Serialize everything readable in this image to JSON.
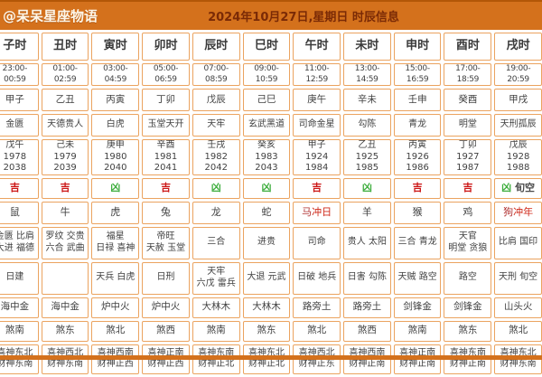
{
  "header": {
    "brand": "@呆呆星座物语",
    "title": "2024年10月27日,星期日 时辰信息"
  },
  "colors": {
    "header_bg": "#d4711c",
    "brand_text": "#fdf6e8",
    "title_text": "#7a2a06",
    "cell_border": "#eba35f",
    "cell_text": "#414141",
    "auspicious_red": "#cc1414",
    "inauspicious_green": "#3fae3f",
    "clash_red": "#d02a1a"
  },
  "table": {
    "columns": [
      {
        "hour": "子时",
        "time": "23:00-00:59",
        "ganzhi": "甲子",
        "deity": "金匮",
        "clash_ganzhi": "戊午",
        "clash_years": "1978 2038",
        "luck": "吉",
        "luck_extra": "",
        "zodiac": "鼠",
        "zodiac_note": "",
        "good_stars": [
          "金匮 比肩",
          "大进 福德"
        ],
        "bad_stars": [
          "日建"
        ],
        "nayin": "海中金",
        "sha": "煞南",
        "xishen": "喜神东北",
        "caishen": "财神东南"
      },
      {
        "hour": "丑时",
        "time": "01:00-02:59",
        "ganzhi": "乙丑",
        "deity": "天德贵人",
        "clash_ganzhi": "己未",
        "clash_years": "1979 2039",
        "luck": "吉",
        "luck_extra": "",
        "zodiac": "牛",
        "zodiac_note": "",
        "good_stars": [
          "罗纹 交贵",
          "六合 武曲"
        ],
        "bad_stars": [],
        "nayin": "海中金",
        "sha": "煞东",
        "xishen": "喜神西北",
        "caishen": "财神东南"
      },
      {
        "hour": "寅时",
        "time": "03:00-04:59",
        "ganzhi": "丙寅",
        "deity": "白虎",
        "clash_ganzhi": "庚申",
        "clash_years": "1980 2040",
        "luck": "凶",
        "luck_extra": "",
        "zodiac": "虎",
        "zodiac_note": "",
        "good_stars": [
          "福星",
          "日禄 喜神"
        ],
        "bad_stars": [
          "天兵 白虎"
        ],
        "nayin": "炉中火",
        "sha": "煞北",
        "xishen": "喜神西南",
        "caishen": "财神正西"
      },
      {
        "hour": "卯时",
        "time": "05:00-06:59",
        "ganzhi": "丁卯",
        "deity": "玉堂天开",
        "clash_ganzhi": "辛酉",
        "clash_years": "1981 2041",
        "luck": "吉",
        "luck_extra": "",
        "zodiac": "兔",
        "zodiac_note": "",
        "good_stars": [
          "帝旺",
          "天赦 玉堂"
        ],
        "bad_stars": [
          "日刑"
        ],
        "nayin": "炉中火",
        "sha": "煞西",
        "xishen": "喜神正南",
        "caishen": "财神正西"
      },
      {
        "hour": "辰时",
        "time": "07:00-08:59",
        "ganzhi": "戊辰",
        "deity": "天牢",
        "clash_ganzhi": "壬戌",
        "clash_years": "1982 2042",
        "luck": "凶",
        "luck_extra": "",
        "zodiac": "龙",
        "zodiac_note": "",
        "good_stars": [
          "三合"
        ],
        "bad_stars": [
          "天牢",
          "六戊 雷兵"
        ],
        "nayin": "大林木",
        "sha": "煞南",
        "xishen": "喜神东南",
        "caishen": "财神正北"
      },
      {
        "hour": "巳时",
        "time": "09:00-10:59",
        "ganzhi": "己巳",
        "deity": "玄武黑道",
        "clash_ganzhi": "癸亥",
        "clash_years": "1983 2043",
        "luck": "凶",
        "luck_extra": "",
        "zodiac": "蛇",
        "zodiac_note": "",
        "good_stars": [
          "进贵"
        ],
        "bad_stars": [
          "大退 元武"
        ],
        "nayin": "大林木",
        "sha": "煞东",
        "xishen": "喜神东北",
        "caishen": "财神正北"
      },
      {
        "hour": "午时",
        "time": "11:00-12:59",
        "ganzhi": "庚午",
        "deity": "司命金星",
        "clash_ganzhi": "甲子",
        "clash_years": "1924 1984",
        "luck": "吉",
        "luck_extra": "",
        "zodiac": "马",
        "zodiac_note": "冲日",
        "good_stars": [
          "司命"
        ],
        "bad_stars": [
          "日破 地兵"
        ],
        "nayin": "路旁土",
        "sha": "煞北",
        "xishen": "喜神西北",
        "caishen": "财神正东"
      },
      {
        "hour": "未时",
        "time": "13:00-14:59",
        "ganzhi": "辛未",
        "deity": "勾陈",
        "clash_ganzhi": "乙丑",
        "clash_years": "1925 1985",
        "luck": "凶",
        "luck_extra": "",
        "zodiac": "羊",
        "zodiac_note": "",
        "good_stars": [
          "贵人 太阳"
        ],
        "bad_stars": [
          "日害 勾陈"
        ],
        "nayin": "路旁土",
        "sha": "煞西",
        "xishen": "喜神西南",
        "caishen": "财神正南"
      },
      {
        "hour": "申时",
        "time": "15:00-16:59",
        "ganzhi": "壬申",
        "deity": "青龙",
        "clash_ganzhi": "丙寅",
        "clash_years": "1926 1986",
        "luck": "吉",
        "luck_extra": "",
        "zodiac": "猴",
        "zodiac_note": "",
        "good_stars": [
          "三合 青龙"
        ],
        "bad_stars": [
          "天贼 路空"
        ],
        "nayin": "剑锋金",
        "sha": "煞南",
        "xishen": "喜神正南",
        "caishen": "财神正南"
      },
      {
        "hour": "酉时",
        "time": "17:00-18:59",
        "ganzhi": "癸酉",
        "deity": "明堂",
        "clash_ganzhi": "丁卯",
        "clash_years": "1927 1987",
        "luck": "吉",
        "luck_extra": "",
        "zodiac": "鸡",
        "zodiac_note": "",
        "good_stars": [
          "天官",
          "明堂 贪狼"
        ],
        "bad_stars": [
          "路空"
        ],
        "nayin": "剑锋金",
        "sha": "煞东",
        "xishen": "喜神东南",
        "caishen": "财神正南"
      },
      {
        "hour": "戌时",
        "time": "19:00-20:59",
        "ganzhi": "甲戌",
        "deity": "天刑孤辰",
        "clash_ganzhi": "戊辰",
        "clash_years": "1928 1988",
        "luck": "凶",
        "luck_extra": "旬空",
        "zodiac": "狗",
        "zodiac_note": "冲年",
        "good_stars": [
          "比肩 国印"
        ],
        "bad_stars": [
          "天刑 旬空"
        ],
        "nayin": "山头火",
        "sha": "煞北",
        "xishen": "喜神东北",
        "caishen": "财神东南"
      }
    ]
  }
}
